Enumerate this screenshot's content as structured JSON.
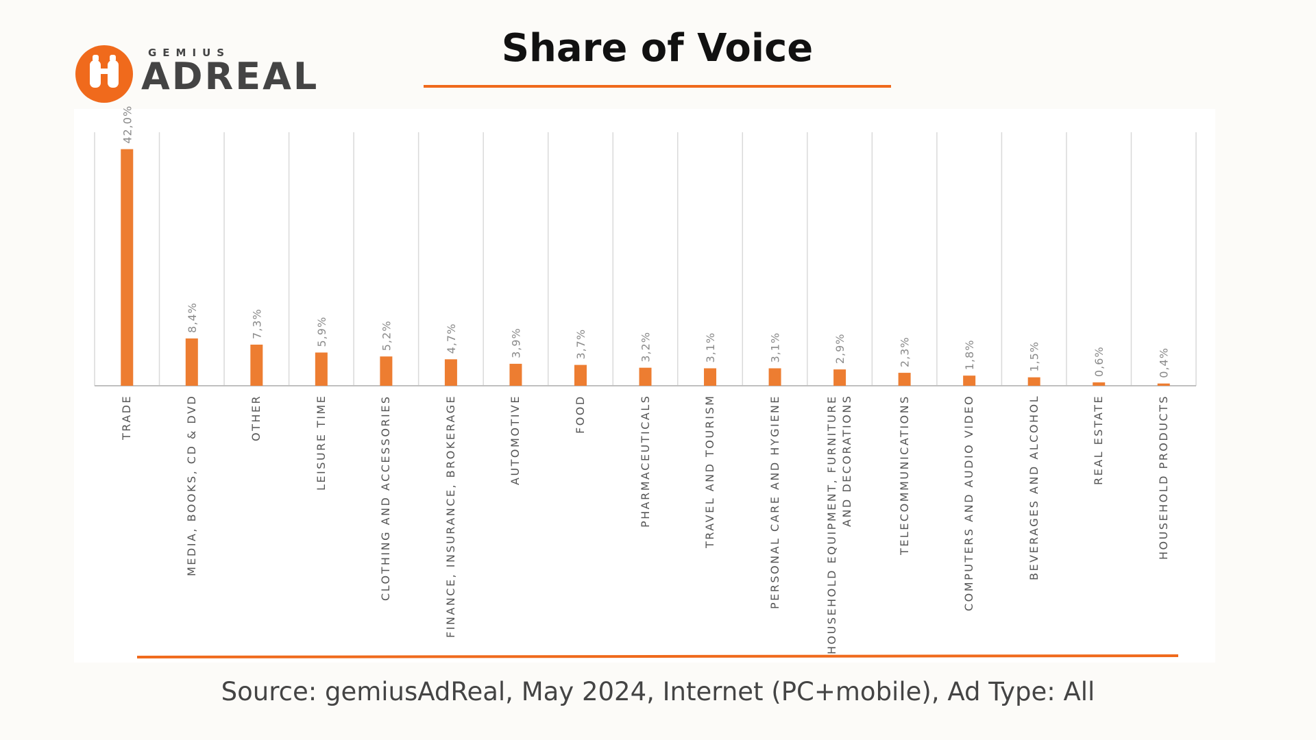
{
  "logo": {
    "brand": "GEMIUS",
    "name": "ADREAL"
  },
  "chart_data": {
    "type": "bar",
    "title": "Share of Voice",
    "categories": [
      "TRADE",
      "MEDIA, BOOKS, CD & DVD",
      "OTHER",
      "LEISURE TIME",
      "CLOTHING AND ACCESSORIES",
      "FINANCE, INSURANCE, BROKERAGE",
      "AUTOMOTIVE",
      "FOOD",
      "PHARMACEUTICALS",
      "TRAVEL AND TOURISM",
      "PERSONAL CARE AND HYGIENE",
      "HOUSEHOLD EQUIPMENT, FURNITURE AND DECORATIONS",
      "TELECOMMUNICATIONS",
      "COMPUTERS AND AUDIO VIDEO",
      "BEVERAGES AND ALCOHOL",
      "REAL ESTATE",
      "HOUSEHOLD PRODUCTS"
    ],
    "values": [
      42.0,
      8.4,
      7.3,
      5.9,
      5.2,
      4.7,
      3.9,
      3.7,
      3.2,
      3.1,
      3.1,
      2.9,
      2.3,
      1.8,
      1.5,
      0.6,
      0.4
    ],
    "value_labels": [
      "42,0%",
      "8,4%",
      "7,3%",
      "5,9%",
      "5,2%",
      "4,7%",
      "3,9%",
      "3,7%",
      "3,2%",
      "3,1%",
      "3,1%",
      "2,9%",
      "2,3%",
      "1,8%",
      "1,5%",
      "0,6%",
      "0,4%"
    ],
    "color": "#ed7d31",
    "ylim": [
      0,
      45
    ],
    "grid": true
  },
  "source": "Source: gemiusAdReal, May 2024, Internet (PC+mobile), Ad Type: All"
}
